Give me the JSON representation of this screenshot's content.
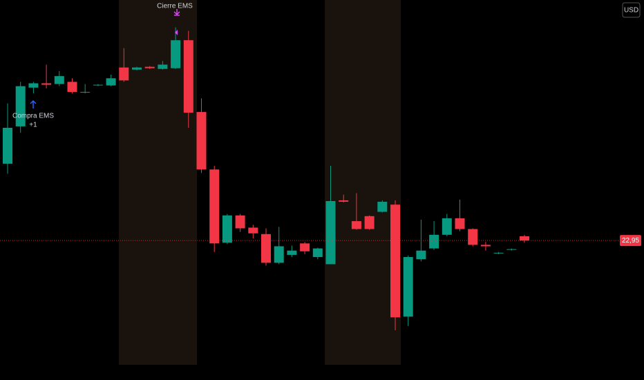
{
  "chart_data": {
    "type": "candlestick",
    "open": [
      24.02,
      24.54,
      25.08,
      25.14,
      25.13,
      25.16,
      25.01,
      25.11,
      25.11,
      25.36,
      25.33,
      25.37,
      25.34,
      25.35,
      25.74,
      24.74,
      23.94,
      22.92,
      23.3,
      23.13,
      23.04,
      22.64,
      22.75,
      22.91,
      22.72,
      22.62,
      23.51,
      23.22,
      23.29,
      23.35,
      23.45,
      21.89,
      22.69,
      22.84,
      23.03,
      23.26,
      23.11,
      22.89,
      22.77,
      22.82,
      23.01
    ],
    "high": [
      24.86,
      25.16,
      25.16,
      25.4,
      25.31,
      25.21,
      25.13,
      25.13,
      25.26,
      25.63,
      25.37,
      25.38,
      25.45,
      25.92,
      25.87,
      24.93,
      23.99,
      23.32,
      23.32,
      23.17,
      23.12,
      23.14,
      22.88,
      22.93,
      22.85,
      23.99,
      23.59,
      23.61,
      23.3,
      23.51,
      23.51,
      22.74,
      23.24,
      23.22,
      23.32,
      23.52,
      23.12,
      22.93,
      22.79,
      22.84,
      23.03
    ],
    "low": [
      23.88,
      24.45,
      25.0,
      25.07,
      25.1,
      25.0,
      25.0,
      25.1,
      25.1,
      25.16,
      25.32,
      25.34,
      25.33,
      25.34,
      24.52,
      23.89,
      22.79,
      22.9,
      23.07,
      22.98,
      22.6,
      22.62,
      22.72,
      22.76,
      22.69,
      22.62,
      23.48,
      23.1,
      23.1,
      23.34,
      21.7,
      21.76,
      22.66,
      22.82,
      23.01,
      23.08,
      22.87,
      22.81,
      22.76,
      22.81,
      22.92
    ],
    "close": [
      24.52,
      25.1,
      25.14,
      25.12,
      25.24,
      25.02,
      25.02,
      25.12,
      25.21,
      25.18,
      25.36,
      25.35,
      25.4,
      25.74,
      24.73,
      23.94,
      22.91,
      23.3,
      23.12,
      23.05,
      22.64,
      22.87,
      22.81,
      22.8,
      22.84,
      23.5,
      23.49,
      23.11,
      23.11,
      23.49,
      21.88,
      22.72,
      22.81,
      23.03,
      23.26,
      23.11,
      22.89,
      22.87,
      22.78,
      22.83,
      22.95
    ],
    "up_color": "#089981",
    "down_color": "#f23645",
    "ylim": [
      21.2,
      26.3
    ],
    "currency": "USD",
    "last_price": {
      "value": 22.95,
      "label": "22,95"
    },
    "annotations": {
      "sell": "Cierre EMS",
      "buy": "Compra EMS",
      "buy_qty": "+1"
    }
  }
}
